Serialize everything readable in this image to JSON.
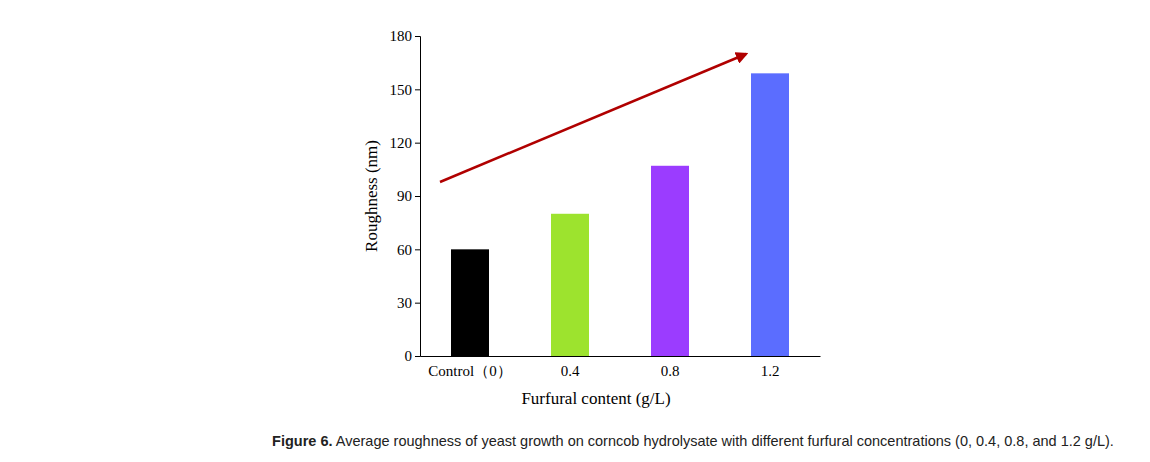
{
  "chart_data": {
    "type": "bar",
    "title": "Figure 6. Average roughness of yeast growth on corncob hydrolysate with different furfural concentrations (0, 0.4, 0.8, and 1.2 g/L).",
    "x_label": "Furfural content (g/L)",
    "y_label": "Roughness (nm)",
    "categories": [
      "Control（0）",
      "0.4",
      "0.8",
      "1.2"
    ],
    "values": [
      60,
      80,
      107,
      159
    ],
    "colors": [
      "#000000",
      "#9de32e",
      "#9b3cff",
      "#5b6dff"
    ],
    "ylim": [
      0,
      180
    ],
    "yticks": [
      0,
      30,
      60,
      90,
      120,
      150,
      180
    ],
    "grid": false
  }
}
